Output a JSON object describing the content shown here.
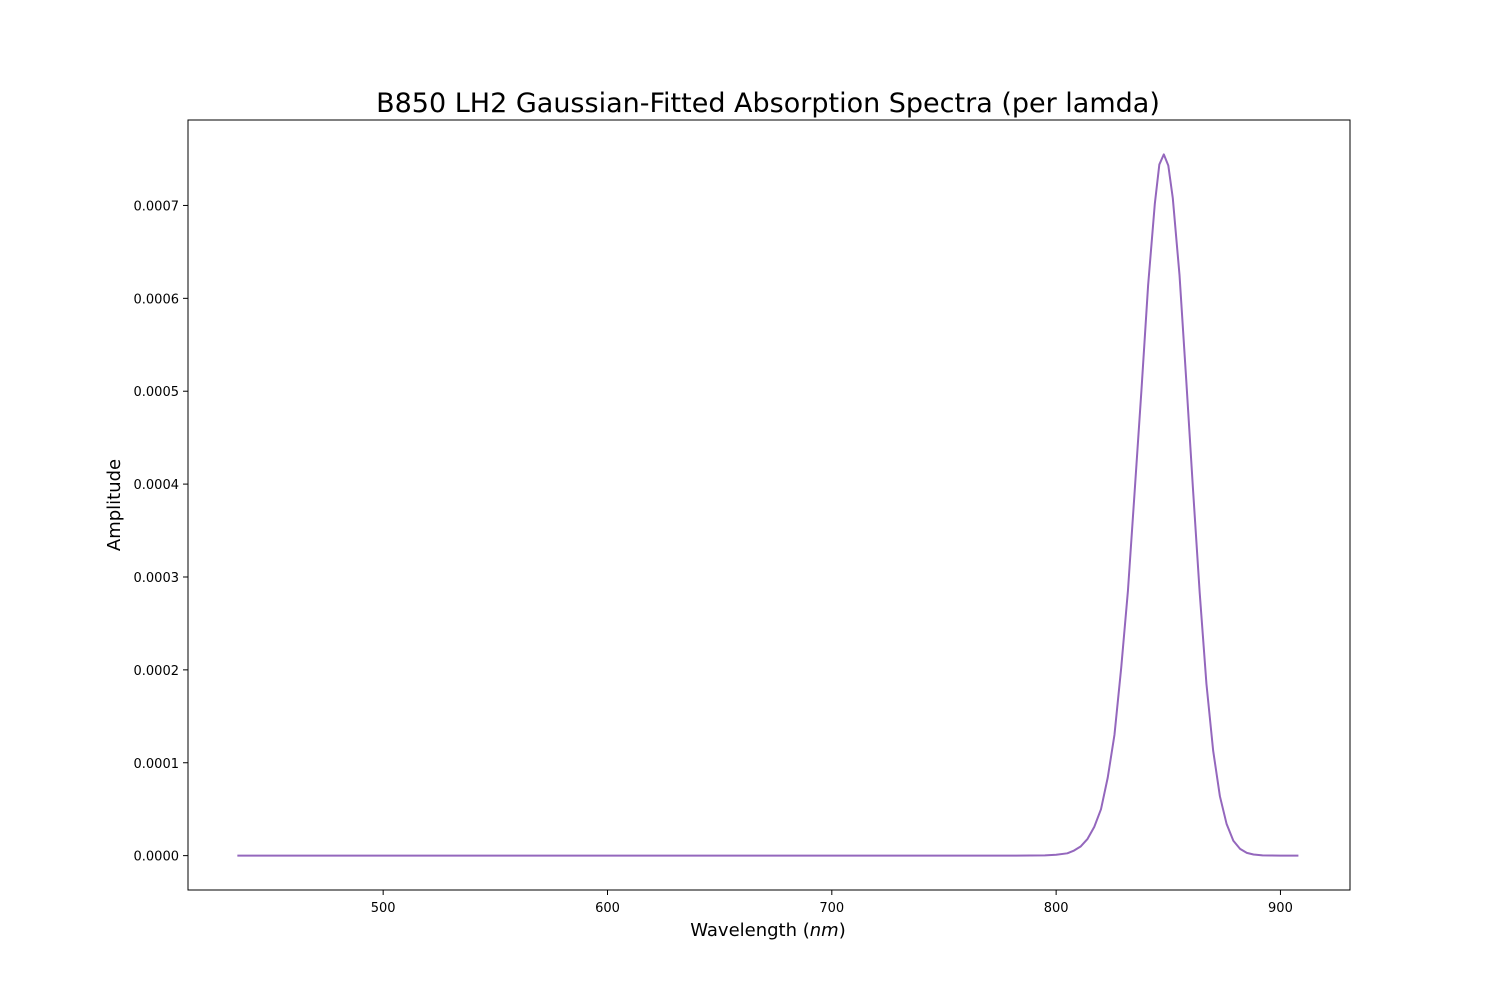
{
  "chart_data": {
    "type": "line",
    "title": "B850 LH2 Gaussian-Fitted Absorption Spectra (per lamda)",
    "xlabel_prefix": "Wavelength (",
    "xlabel_unit": "nm",
    "xlabel_suffix": ")",
    "ylabel": "Amplitude",
    "xlim": [
      413,
      931
    ],
    "ylim": [
      -3.7e-05,
      0.000792
    ],
    "x_ticks": [
      500,
      600,
      700,
      800,
      900
    ],
    "x_tick_labels": [
      "500",
      "600",
      "700",
      "800",
      "900"
    ],
    "y_ticks": [
      0.0,
      0.0001,
      0.0002,
      0.0003,
      0.0004,
      0.0005,
      0.0006,
      0.0007
    ],
    "y_tick_labels": [
      "0.0000",
      "0.0001",
      "0.0002",
      "0.0003",
      "0.0004",
      "0.0005",
      "0.0006",
      "0.0007"
    ],
    "grid": false,
    "colors": {
      "line": "#9467bd",
      "axes": "#000000",
      "background": "#ffffff"
    },
    "series": [
      {
        "x": [
          435,
          500,
          600,
          700,
          780,
          795,
          800,
          805,
          808,
          811,
          814,
          817,
          820,
          823,
          826,
          829,
          832,
          835,
          838,
          841,
          844,
          846,
          848,
          850,
          852,
          855,
          858,
          861,
          864,
          867,
          870,
          873,
          876,
          879,
          882,
          885,
          888,
          892,
          896,
          900,
          908
        ],
        "y": [
          0,
          0,
          0,
          0,
          0,
          3e-07,
          1e-06,
          2.5e-06,
          5.5e-06,
          1e-05,
          1.8e-05,
          3.1e-05,
          5e-05,
          8.4e-05,
          0.00013,
          0.000202,
          0.000285,
          0.000392,
          0.0005,
          0.000614,
          0.000702,
          0.000744,
          0.000755,
          0.000743,
          0.000708,
          0.000625,
          0.000512,
          0.000395,
          0.000283,
          0.000185,
          0.000113,
          6.4e-05,
          3.4e-05,
          1.6e-05,
          7.3e-06,
          3e-06,
          1.2e-06,
          3e-07,
          1e-07,
          0,
          0
        ]
      }
    ]
  }
}
